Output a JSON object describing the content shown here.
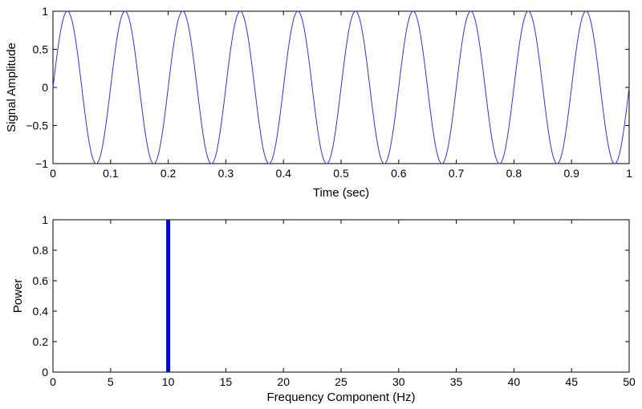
{
  "chart_data": [
    {
      "type": "line",
      "title": "",
      "xlabel": "Time (sec)",
      "ylabel": "Signal Amplitude",
      "xlim": [
        0,
        1
      ],
      "ylim": [
        -1,
        1
      ],
      "xticks": [
        0,
        0.1,
        0.2,
        0.3,
        0.4,
        0.5,
        0.6,
        0.7,
        0.8,
        0.9,
        1
      ],
      "xtick_labels": [
        "0",
        "0.1",
        "0.2",
        "0.3",
        "0.4",
        "0.5",
        "0.6",
        "0.7",
        "0.8",
        "0.9",
        "1"
      ],
      "yticks": [
        -1,
        -0.5,
        0,
        0.5,
        1
      ],
      "ytick_labels": [
        "−1",
        "−0.5",
        "0",
        "0.5",
        "1"
      ],
      "grid": false,
      "series": [
        {
          "function": "sin(2*pi*10*t)",
          "frequency_hz": 10,
          "amplitude": 1,
          "t_start": 0,
          "t_end": 1,
          "color": "#3333cc"
        }
      ]
    },
    {
      "type": "bar",
      "title": "",
      "xlabel": "Frequency Component (Hz)",
      "ylabel": "Power",
      "xlim": [
        0,
        50
      ],
      "ylim": [
        0,
        1
      ],
      "xticks": [
        0,
        5,
        10,
        15,
        20,
        25,
        30,
        35,
        40,
        45,
        50
      ],
      "xtick_labels": [
        "0",
        "5",
        "10",
        "15",
        "20",
        "25",
        "30",
        "35",
        "40",
        "45",
        "50"
      ],
      "yticks": [
        0,
        0.2,
        0.4,
        0.6,
        0.8,
        1
      ],
      "ytick_labels": [
        "0",
        "0.2",
        "0.4",
        "0.6",
        "0.8",
        "1"
      ],
      "grid": false,
      "series": [
        {
          "x": [
            10
          ],
          "values": [
            1
          ],
          "color": "#0000ee"
        }
      ]
    }
  ]
}
